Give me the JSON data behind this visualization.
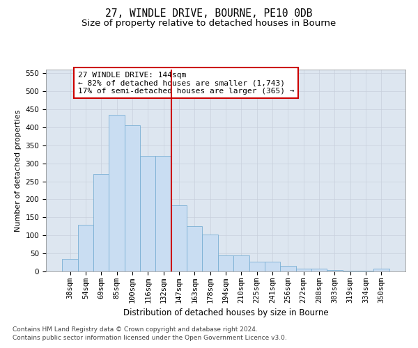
{
  "title": "27, WINDLE DRIVE, BOURNE, PE10 0DB",
  "subtitle": "Size of property relative to detached houses in Bourne",
  "xlabel": "Distribution of detached houses by size in Bourne",
  "ylabel": "Number of detached properties",
  "categories": [
    "38sqm",
    "54sqm",
    "69sqm",
    "85sqm",
    "100sqm",
    "116sqm",
    "132sqm",
    "147sqm",
    "163sqm",
    "178sqm",
    "194sqm",
    "210sqm",
    "225sqm",
    "241sqm",
    "256sqm",
    "272sqm",
    "288sqm",
    "303sqm",
    "319sqm",
    "334sqm",
    "350sqm"
  ],
  "values": [
    35,
    130,
    270,
    435,
    405,
    320,
    320,
    183,
    125,
    103,
    45,
    45,
    28,
    28,
    15,
    8,
    8,
    3,
    2,
    2,
    8
  ],
  "bar_color": "#c9ddf2",
  "bar_edge_color": "#7aafd4",
  "redline_index": 7,
  "annotation_text": "27 WINDLE DRIVE: 144sqm\n← 82% of detached houses are smaller (1,743)\n17% of semi-detached houses are larger (365) →",
  "annotation_box_color": "#ffffff",
  "annotation_box_edge_color": "#cc0000",
  "redline_color": "#cc0000",
  "ylim": [
    0,
    560
  ],
  "yticks": [
    0,
    50,
    100,
    150,
    200,
    250,
    300,
    350,
    400,
    450,
    500,
    550
  ],
  "grid_color": "#c8d0dc",
  "background_color": "#dde6f0",
  "footer": "Contains HM Land Registry data © Crown copyright and database right 2024.\nContains public sector information licensed under the Open Government Licence v3.0.",
  "title_fontsize": 10.5,
  "subtitle_fontsize": 9.5,
  "xlabel_fontsize": 8.5,
  "ylabel_fontsize": 8,
  "tick_fontsize": 7.5,
  "annotation_fontsize": 8,
  "footer_fontsize": 6.5
}
